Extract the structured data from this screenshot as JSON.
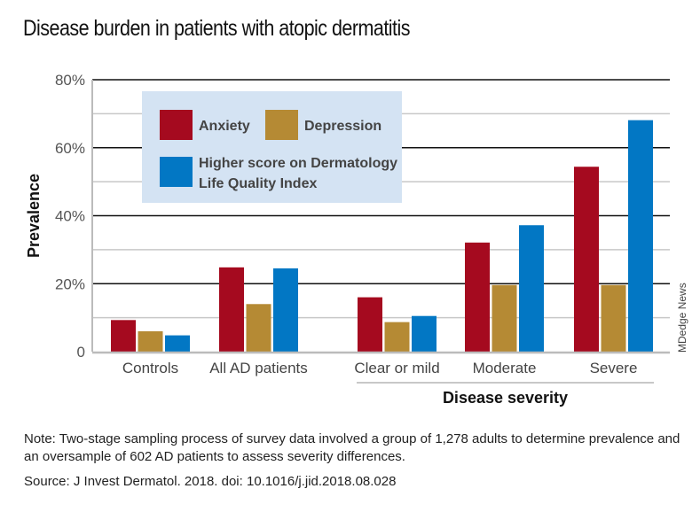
{
  "title": "Disease burden in patients with atopic dermatitis",
  "credit": "MDedge News",
  "note_label": "Note:",
  "note_text": "Two-stage sampling process of survey data involved a group of 1,278 adults to determine prevalence and an oversample of 602 AD patients to assess severity differences.",
  "source_label": "Source:",
  "source_text": "J Invest Dermatol. 2018. doi: 10.1016/j.jid.2018.08.028",
  "colors": {
    "Anxiety": "#a50a1f",
    "Depression": "#b58a34",
    "Higher score on Dermatology Life Quality Index": "#0277c4",
    "legend_bg": "#d4e3f3"
  },
  "chart_data": {
    "type": "bar",
    "title": "Disease burden in patients with atopic dermatitis",
    "xlabel": "",
    "ylabel": "Prevalence",
    "group_label": "Disease severity",
    "group_label_covers": [
      "Clear or mild",
      "Moderate",
      "Severe"
    ],
    "ylim": [
      0,
      80
    ],
    "yticks": [
      0,
      20,
      40,
      60,
      80
    ],
    "ytick_labels": [
      "0",
      "20%",
      "40%",
      "60%",
      "80%"
    ],
    "grid": true,
    "legend_position": "top-left",
    "categories": [
      "Controls",
      "All AD patients",
      "Clear or mild",
      "Moderate",
      "Severe"
    ],
    "series": [
      {
        "name": "Anxiety",
        "values": [
          9.3,
          24.8,
          16.0,
          32.1,
          54.4
        ]
      },
      {
        "name": "Depression",
        "values": [
          6.0,
          14.0,
          8.7,
          19.6,
          19.6
        ]
      },
      {
        "name": "Higher score on Dermatology Life Quality Index",
        "values": [
          4.8,
          24.5,
          10.5,
          37.2,
          68.1
        ]
      }
    ],
    "legend": {
      "entries": [
        {
          "label": "Anxiety"
        },
        {
          "label": "Depression"
        },
        {
          "label_line1": "Higher score on Dermatology",
          "label_line2": "Life Quality Index"
        }
      ]
    }
  }
}
